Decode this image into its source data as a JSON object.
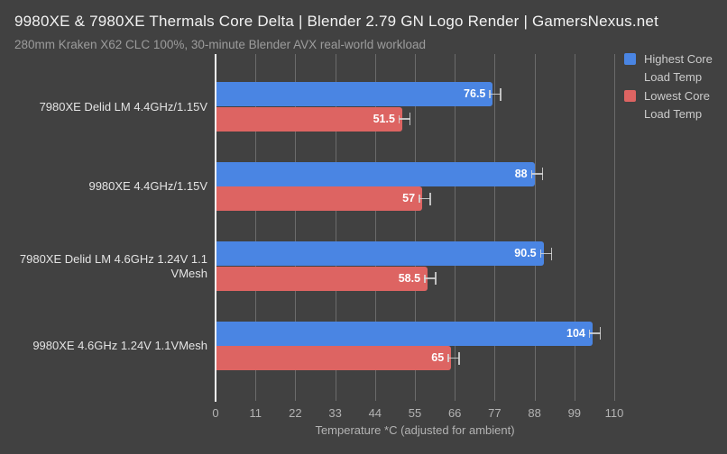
{
  "header": {
    "title": "9980XE & 7980XE Thermals Core Delta | Blender 2.79 GN Logo Render | GamersNexus.net",
    "subtitle": "280mm Kraken X62 CLC 100%, 30-minute Blender AVX real-world workload"
  },
  "colors": {
    "background": "#414141",
    "gridline": "#6b6b6b",
    "zero_axis": "#f7f7f7",
    "highest_series": "#4a85e3",
    "lowest_series": "#dd6462",
    "title_text": "#f2f2f2",
    "subtitle_text": "#9c9c9c",
    "tick_text": "#b3b3b3"
  },
  "chart_data": {
    "type": "bar",
    "orientation": "horizontal",
    "title": "9980XE & 7980XE Thermals Core Delta | Blender 2.79 GN Logo Render | GamersNexus.net",
    "subtitle": "280mm Kraken X62 CLC 100%, 30-minute Blender AVX real-world workload",
    "categories": [
      "7980XE Delid LM 4.4GHz/1.15V",
      "9980XE 4.4GHz/1.15V",
      "7980XE Delid LM 4.6GHz 1.24V 1.1 VMesh",
      "9980XE 4.6GHz 1.24V 1.1VMesh"
    ],
    "series": [
      {
        "name": "Highest Core Load Temp",
        "color": "#4a85e3",
        "values": [
          76.5,
          88,
          90.5,
          104
        ],
        "error_bars": true
      },
      {
        "name": "Lowest Core Load Temp",
        "color": "#dd6462",
        "values": [
          51.5,
          57,
          58.5,
          65
        ],
        "error_bars": true
      }
    ],
    "xlabel": "Temperature *C (adjusted for ambient)",
    "x_ticks": [
      0,
      11,
      22,
      33,
      44,
      55,
      66,
      77,
      88,
      99,
      110
    ],
    "xlim": [
      0,
      110
    ],
    "grid": "vertical",
    "value_labels": "inside-end",
    "legend_position": "top-right"
  }
}
